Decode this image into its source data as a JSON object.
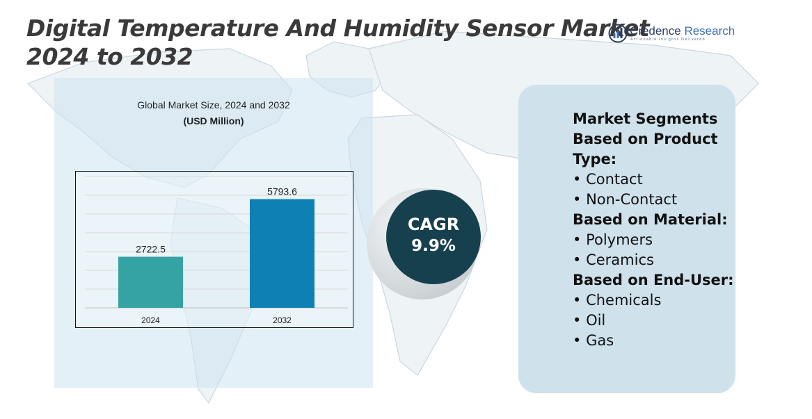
{
  "header": {
    "title_line1": "Digital Temperature And Humidity Sensor Market",
    "title_line2": "2024 to 2032"
  },
  "logo": {
    "name_part1": "Credence",
    "name_part2": " Research",
    "tagline": "Actionable Insights Delivered"
  },
  "chart_panel": {
    "heading": "Global Market Size, 2024 and 2032",
    "unit": "(USD Million)"
  },
  "chart_data": {
    "type": "bar",
    "title": "Global Market Size, 2024 and 2032",
    "subtitle": "(USD Million)",
    "categories": [
      "2024",
      "2032"
    ],
    "values": [
      2722.5,
      5793.6
    ],
    "data_labels": [
      "2722.5",
      "5793.6"
    ],
    "ylim": [
      0,
      7000
    ],
    "grid": true,
    "xlabel": "",
    "ylabel": "",
    "colors": [
      "#35a3a3",
      "#0f80b3"
    ]
  },
  "cagr": {
    "label": "CAGR",
    "value": "9.9%"
  },
  "segments": {
    "title_line1": "Market Segments",
    "groups": [
      {
        "heading": "Based on Product Type:",
        "items": [
          "Contact",
          "Non-Contact"
        ]
      },
      {
        "heading": "Based on Material:",
        "items": [
          "Polymers",
          "Ceramics"
        ]
      },
      {
        "heading": "Based on End-User:",
        "items": [
          "Chemicals",
          "Oil",
          "Gas"
        ]
      }
    ]
  },
  "colors": {
    "title": "#3a3a3a",
    "panel": "#cfe1eb",
    "cagr_circle": "#17404f",
    "bar_2024": "#35a3a3",
    "bar_2032": "#0f80b3",
    "logo_blue": "#3a6fb0"
  }
}
